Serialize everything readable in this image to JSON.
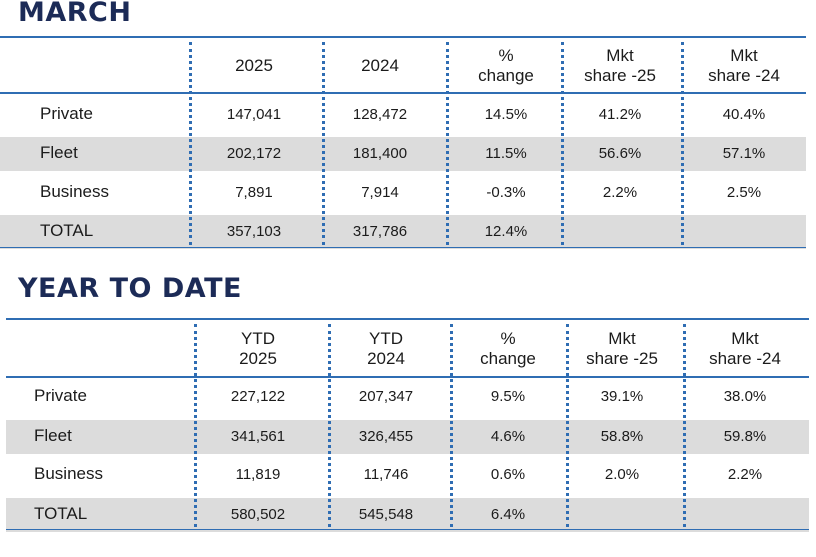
{
  "march": {
    "title": "MARCH",
    "headers": [
      "2025",
      "2024",
      "%\nchange",
      "Mkt\nshare -25",
      "Mkt\nshare -24"
    ],
    "rows": [
      {
        "label": "Private",
        "values": [
          "147,041",
          "128,472",
          "14.5%",
          "41.2%",
          "40.4%"
        ]
      },
      {
        "label": "Fleet",
        "values": [
          "202,172",
          "181,400",
          "11.5%",
          "56.6%",
          "57.1%"
        ]
      },
      {
        "label": "Business",
        "values": [
          "7,891",
          "7,914",
          "-0.3%",
          "2.2%",
          "2.5%"
        ]
      },
      {
        "label": "TOTAL",
        "values": [
          "357,103",
          "317,786",
          "12.4%",
          "",
          ""
        ]
      }
    ]
  },
  "ytd": {
    "title": "YEAR TO DATE",
    "headers": [
      "YTD\n2025",
      "YTD\n2024",
      "%\nchange",
      "Mkt\nshare -25",
      "Mkt\nshare -24"
    ],
    "rows": [
      {
        "label": "Private",
        "values": [
          "227,122",
          "207,347",
          "9.5%",
          "39.1%",
          "38.0%"
        ]
      },
      {
        "label": "Fleet",
        "values": [
          "341,561",
          "326,455",
          "4.6%",
          "58.8%",
          "59.8%"
        ]
      },
      {
        "label": "Business",
        "values": [
          "11,819",
          "11,746",
          "0.6%",
          "2.0%",
          "2.2%"
        ]
      },
      {
        "label": "TOTAL",
        "values": [
          "580,502",
          "545,548",
          "6.4%",
          "",
          ""
        ]
      }
    ]
  },
  "colors": {
    "title": "#1c2b57",
    "rule": "#2f6db3",
    "shade": "#dcdcdc"
  }
}
